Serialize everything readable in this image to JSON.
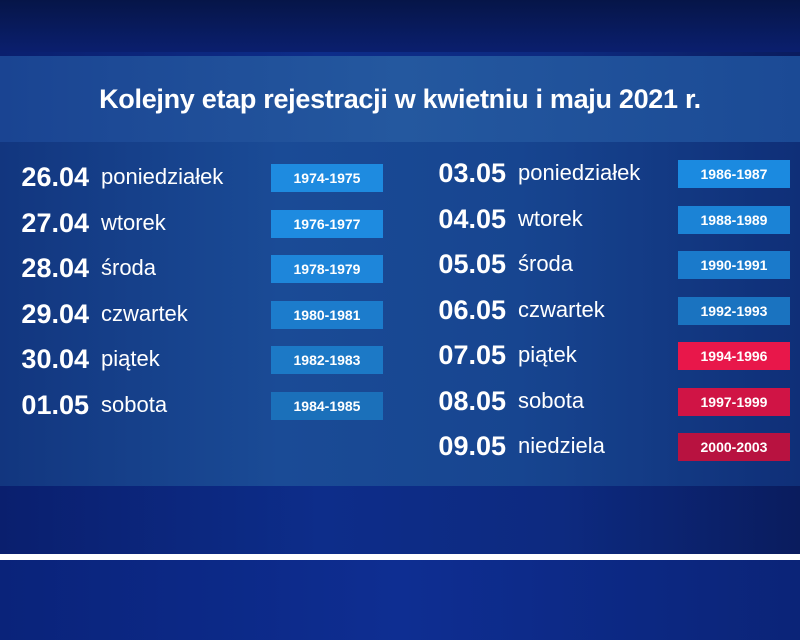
{
  "title": "Kolejny etap rejestracji w kwietniu i maju 2021 r.",
  "left_column": [
    {
      "date": "26.04",
      "day": "poniedziałek",
      "years": "1974-1975",
      "color": "#1e8be0"
    },
    {
      "date": "27.04",
      "day": "wtorek",
      "years": "1976-1977",
      "color": "#1e8be0"
    },
    {
      "date": "28.04",
      "day": "środa",
      "years": "1978-1979",
      "color": "#1e86da"
    },
    {
      "date": "29.04",
      "day": "czwartek",
      "years": "1980-1981",
      "color": "#1c7ccc"
    },
    {
      "date": "30.04",
      "day": "piątek",
      "years": "1982-1983",
      "color": "#1c79c6"
    },
    {
      "date": "01.05",
      "day": "sobota",
      "years": "1984-1985",
      "color": "#1b70ba"
    }
  ],
  "right_column": [
    {
      "date": "03.05",
      "day": "poniedziałek",
      "years": "1986-1987",
      "color": "#1b8ae0"
    },
    {
      "date": "04.05",
      "day": "wtorek",
      "years": "1988-1989",
      "color": "#1b83d6"
    },
    {
      "date": "05.05",
      "day": "środa",
      "years": "1990-1991",
      "color": "#1a7acb"
    },
    {
      "date": "06.05",
      "day": "czwartek",
      "years": "1992-1993",
      "color": "#1a73c0"
    },
    {
      "date": "07.05",
      "day": "piątek",
      "years": "1994-1996",
      "color": "#e8174a"
    },
    {
      "date": "08.05",
      "day": "sobota",
      "years": "1997-1999",
      "color": "#d01445"
    },
    {
      "date": "09.05",
      "day": "niedziela",
      "years": "2000-2003",
      "color": "#b81240"
    }
  ]
}
